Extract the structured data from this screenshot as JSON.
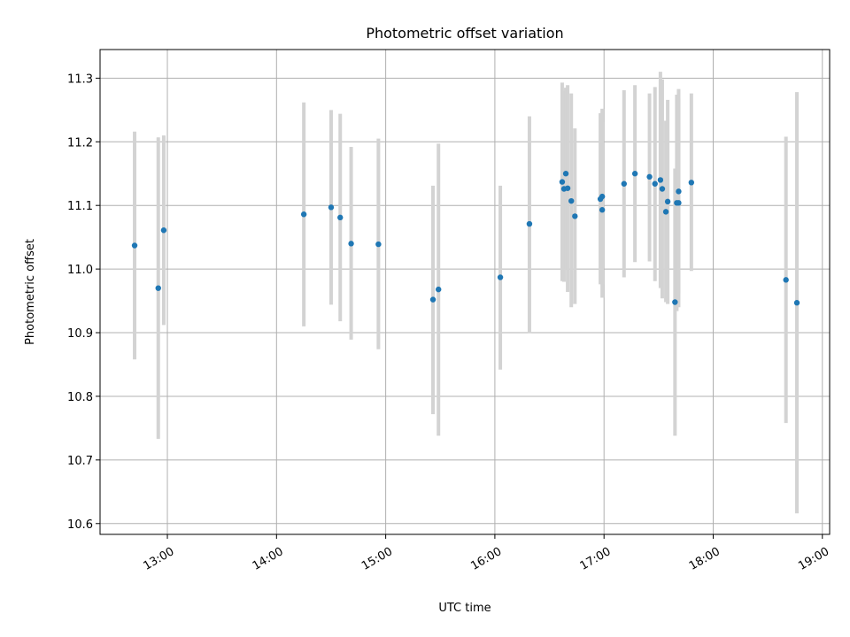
{
  "chart_data": {
    "type": "scatter",
    "title": "Photometric offset variation",
    "xlabel": "UTC time",
    "ylabel": "Photometric offset",
    "xlim": [
      "12:23",
      "19:04"
    ],
    "ylim": [
      10.583,
      11.345
    ],
    "grid": true,
    "x_ticks": [
      "13:00",
      "14:00",
      "15:00",
      "16:00",
      "17:00",
      "18:00",
      "19:00"
    ],
    "y_ticks": [
      10.6,
      10.7,
      10.8,
      10.9,
      11.0,
      11.1,
      11.2,
      11.3
    ],
    "colors": {
      "point": "#1f77b4",
      "errorbar": "#d3d3d3"
    },
    "points": [
      {
        "x": "12:42",
        "y": 11.037,
        "lo": 10.858,
        "hi": 11.216
      },
      {
        "x": "12:55",
        "y": 10.97,
        "lo": 10.733,
        "hi": 11.207
      },
      {
        "x": "12:58",
        "y": 11.061,
        "lo": 10.912,
        "hi": 11.21
      },
      {
        "x": "14:15",
        "y": 11.086,
        "lo": 10.91,
        "hi": 11.262
      },
      {
        "x": "14:30",
        "y": 11.097,
        "lo": 10.944,
        "hi": 11.25
      },
      {
        "x": "14:35",
        "y": 11.081,
        "lo": 10.918,
        "hi": 11.244
      },
      {
        "x": "14:41",
        "y": 11.04,
        "lo": 10.889,
        "hi": 11.192
      },
      {
        "x": "14:56",
        "y": 11.039,
        "lo": 10.874,
        "hi": 11.205
      },
      {
        "x": "15:26",
        "y": 10.952,
        "lo": 10.772,
        "hi": 11.131
      },
      {
        "x": "15:29",
        "y": 10.968,
        "lo": 10.738,
        "hi": 11.197
      },
      {
        "x": "16:03",
        "y": 10.987,
        "lo": 10.842,
        "hi": 11.131
      },
      {
        "x": "16:19",
        "y": 11.071,
        "lo": 10.899,
        "hi": 11.24
      },
      {
        "x": "16:37",
        "y": 11.137,
        "lo": 10.981,
        "hi": 11.293
      },
      {
        "x": "16:38",
        "y": 11.126,
        "lo": 10.98,
        "hi": 11.28
      },
      {
        "x": "16:39",
        "y": 11.15,
        "lo": 11.0,
        "hi": 11.285
      },
      {
        "x": "16:40",
        "y": 11.127,
        "lo": 10.964,
        "hi": 11.289
      },
      {
        "x": "16:42",
        "y": 11.107,
        "lo": 10.94,
        "hi": 11.276
      },
      {
        "x": "16:44",
        "y": 11.083,
        "lo": 10.945,
        "hi": 11.221
      },
      {
        "x": "16:58",
        "y": 11.11,
        "lo": 10.976,
        "hi": 11.245
      },
      {
        "x": "16:59",
        "y": 11.114,
        "lo": 10.976,
        "hi": 11.252
      },
      {
        "x": "16:59",
        "y": 11.093,
        "lo": 10.955,
        "hi": 11.231
      },
      {
        "x": "17:11",
        "y": 11.134,
        "lo": 10.987,
        "hi": 11.281
      },
      {
        "x": "17:17",
        "y": 11.15,
        "lo": 11.011,
        "hi": 11.289
      },
      {
        "x": "17:25",
        "y": 11.145,
        "lo": 11.012,
        "hi": 11.276
      },
      {
        "x": "17:28",
        "y": 11.134,
        "lo": 10.981,
        "hi": 11.286
      },
      {
        "x": "17:31",
        "y": 11.14,
        "lo": 10.97,
        "hi": 11.31
      },
      {
        "x": "17:32",
        "y": 11.126,
        "lo": 10.954,
        "hi": 11.298
      },
      {
        "x": "17:34",
        "y": 11.09,
        "lo": 10.948,
        "hi": 11.233
      },
      {
        "x": "17:35",
        "y": 11.106,
        "lo": 10.945,
        "hi": 11.266
      },
      {
        "x": "17:39",
        "y": 10.948,
        "lo": 10.738,
        "hi": 11.158
      },
      {
        "x": "17:40",
        "y": 11.104,
        "lo": 10.934,
        "hi": 11.274
      },
      {
        "x": "17:41",
        "y": 11.122,
        "lo": 10.962,
        "hi": 11.283
      },
      {
        "x": "17:41",
        "y": 11.104,
        "lo": 10.94,
        "hi": 11.268
      },
      {
        "x": "17:48",
        "y": 11.136,
        "lo": 10.997,
        "hi": 11.276
      },
      {
        "x": "18:40",
        "y": 10.983,
        "lo": 10.758,
        "hi": 11.208
      },
      {
        "x": "18:46",
        "y": 10.947,
        "lo": 10.616,
        "hi": 11.278
      }
    ]
  }
}
